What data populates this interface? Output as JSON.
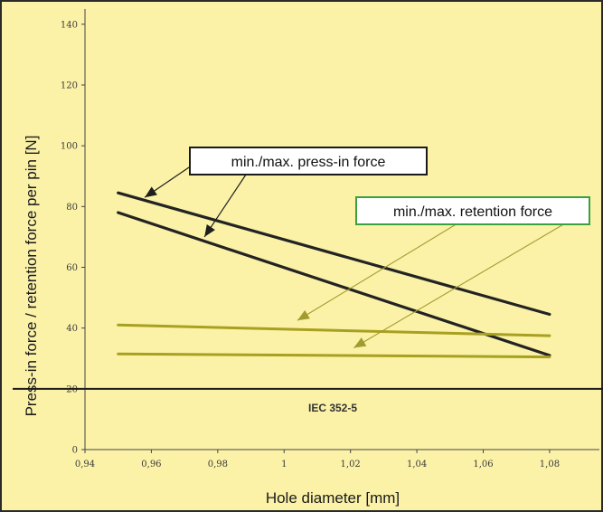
{
  "colors": {
    "background": "#fbf2a8",
    "frame": "#2a2a2a",
    "press_line": "#232323",
    "retention_line": "#a8a020",
    "retention_arrow": "#a39a30",
    "reference_line": "#1a1a1a",
    "retention_box_border": "#3aa040"
  },
  "chart_data": {
    "type": "line",
    "title": "",
    "xlabel": "Hole diameter [mm]",
    "ylabel": "Press-in force / retention force per pin [N]",
    "xlim": [
      0.94,
      1.095
    ],
    "ylim": [
      0,
      145
    ],
    "x_ticks": [
      "0,94",
      "0,96",
      "0,98",
      "1",
      "1,02",
      "1,04",
      "1,06",
      "1,08"
    ],
    "y_ticks": [
      "0",
      "20",
      "40",
      "60",
      "80",
      "100",
      "120",
      "140"
    ],
    "grid": false,
    "series": [
      {
        "group": "press-in",
        "x": [
          0.95,
          1.08
        ],
        "y": [
          84.5,
          44.5
        ]
      },
      {
        "group": "press-in",
        "x": [
          0.95,
          1.08
        ],
        "y": [
          78,
          31
        ]
      },
      {
        "group": "retention",
        "x": [
          0.95,
          1.08
        ],
        "y": [
          41,
          37.5
        ]
      },
      {
        "group": "retention",
        "x": [
          0.95,
          1.08
        ],
        "y": [
          31.5,
          30.5
        ]
      }
    ],
    "reference_line": {
      "y": 20,
      "label": "IEC 352-5"
    },
    "annotations": [
      {
        "text": "min./max. press-in force",
        "group": "press-in",
        "arrow_targets": [
          {
            "x": 0.958,
            "y": 83
          },
          {
            "x": 0.976,
            "y": 70
          }
        ]
      },
      {
        "text": "min./max. retention force",
        "group": "retention",
        "arrow_targets": [
          {
            "x": 1.004,
            "y": 42.5
          },
          {
            "x": 1.021,
            "y": 33.5
          }
        ]
      }
    ]
  }
}
